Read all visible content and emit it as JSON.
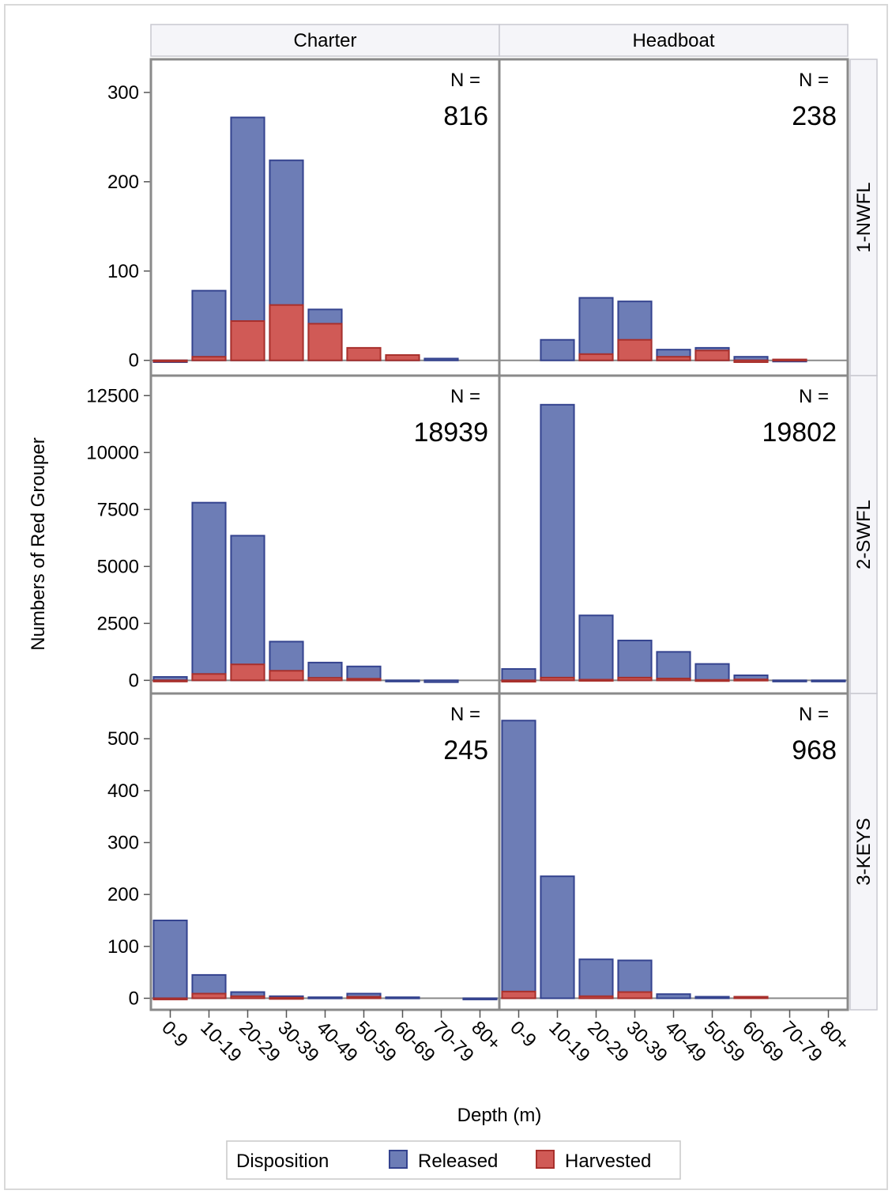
{
  "chart_data": {
    "type": "bar",
    "stacked": true,
    "columns": [
      "Charter",
      "Headboat"
    ],
    "rows": [
      "1-NWFL",
      "2-SWFL",
      "3-KEYS"
    ],
    "categories": [
      "0-9",
      "10-19",
      "20-29",
      "30-39",
      "40-49",
      "50-59",
      "60-69",
      "70-79",
      "80+"
    ],
    "xlabel": "Depth (m)",
    "ylabel": "Numbers of Red Grouper",
    "n_label": "N =",
    "legend": {
      "title": "Disposition",
      "position": "bottom",
      "items": [
        {
          "name": "Released",
          "color": "#6d7db6"
        },
        {
          "name": "Harvested",
          "color": "#d05a56"
        }
      ]
    },
    "panels": [
      {
        "column": "Charter",
        "row": "1-NWFL",
        "n": "816",
        "ylim": [
          -10,
          330
        ],
        "yticks": [
          0,
          100,
          200,
          300
        ],
        "series": [
          {
            "name": "Released",
            "values": [
              -2,
              78,
              272,
              224,
              57,
              3,
              3,
              2,
              0
            ]
          },
          {
            "name": "Harvested",
            "values": [
              -1,
              4,
              44,
              62,
              41,
              14,
              6,
              0,
              0
            ]
          }
        ]
      },
      {
        "column": "Headboat",
        "row": "1-NWFL",
        "n": "238",
        "ylim": [
          -10,
          330
        ],
        "yticks": [
          0,
          100,
          200,
          300
        ],
        "series": [
          {
            "name": "Released",
            "values": [
              0,
              23,
              70,
              66,
              12,
              14,
              4,
              -1,
              0
            ]
          },
          {
            "name": "Harvested",
            "values": [
              0,
              0,
              7,
              23,
              4,
              11,
              -2,
              1,
              0
            ]
          }
        ]
      },
      {
        "column": "Charter",
        "row": "2-SWFL",
        "n": "18939",
        "ylim": [
          -300,
          13100
        ],
        "yticks": [
          0,
          2500,
          5000,
          7500,
          10000,
          12500
        ],
        "series": [
          {
            "name": "Released",
            "values": [
              150,
              7800,
              6350,
              1700,
              780,
              610,
              -50,
              -80,
              0
            ]
          },
          {
            "name": "Harvested",
            "values": [
              -50,
              280,
              700,
              420,
              110,
              70,
              0,
              0,
              0
            ]
          }
        ]
      },
      {
        "column": "Headboat",
        "row": "2-SWFL",
        "n": "19802",
        "ylim": [
          -300,
          13100
        ],
        "yticks": [
          0,
          2500,
          5000,
          7500,
          10000,
          12500
        ],
        "series": [
          {
            "name": "Released",
            "values": [
              500,
              12100,
              2850,
              1750,
              1250,
              720,
              220,
              -50,
              -50
            ]
          },
          {
            "name": "Harvested",
            "values": [
              -60,
              120,
              30,
              120,
              80,
              20,
              40,
              0,
              0
            ]
          }
        ]
      },
      {
        "column": "Charter",
        "row": "3-KEYS",
        "n": "245",
        "ylim": [
          -10,
          575
        ],
        "yticks": [
          0,
          100,
          200,
          300,
          400,
          500
        ],
        "series": [
          {
            "name": "Released",
            "values": [
              150,
              45,
              12,
              4,
              2,
              9,
              2,
              0,
              -2
            ]
          },
          {
            "name": "Harvested",
            "values": [
              -1,
              9,
              4,
              1,
              0,
              3,
              0,
              0,
              0
            ]
          }
        ]
      },
      {
        "column": "Headboat",
        "row": "3-KEYS",
        "n": "968",
        "ylim": [
          -10,
          575
        ],
        "yticks": [
          0,
          100,
          200,
          300,
          400,
          500
        ],
        "series": [
          {
            "name": "Released",
            "values": [
              535,
              235,
              75,
              73,
              8,
              3,
              0,
              0,
              0
            ]
          },
          {
            "name": "Harvested",
            "values": [
              13,
              0,
              4,
              12,
              0,
              0,
              3,
              0,
              0
            ]
          }
        ]
      }
    ]
  }
}
